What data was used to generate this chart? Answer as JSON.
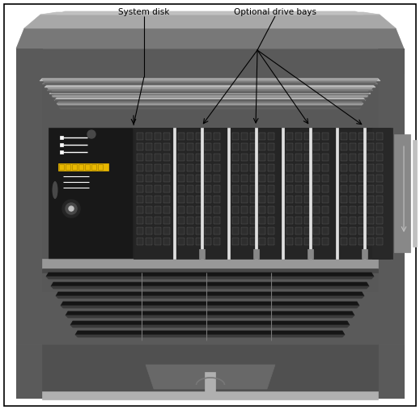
{
  "labels": {
    "system_disk": "System disk",
    "optional_bays": "Optional drive bays"
  },
  "colors": {
    "bg": "#ffffff",
    "black": "#000000",
    "chassis_outer": "#5a5a5a",
    "chassis_mid": "#787878",
    "chassis_light": "#a8a8a8",
    "chassis_lighter": "#c0c0c0",
    "chassis_inner_bg": "#686868",
    "recess_bg": "#585858",
    "drive_black": "#111111",
    "drive_dark": "#252525",
    "drive_texture": "#2e2e2e",
    "separator": "#e0e0e0",
    "yellow": "#e8b800",
    "white": "#ffffff",
    "light_gray": "#c8c8c8",
    "medium_gray": "#888888",
    "dark_gray": "#484848",
    "very_dark": "#181818",
    "right_panel_dark": "#282828",
    "shelf": "#989898",
    "vent_dark": "#151515",
    "vent_mid": "#3a3a3a",
    "lower_body": "#686868",
    "lower_dark": "#505050",
    "lower_strip": "#b0b0b0",
    "top_cap_light": "#909090",
    "top_cap_lighter": "#b0b0b0",
    "curved_line_light": "#9a9a9a",
    "curved_line_dark": "#606060"
  },
  "figure_width": 5.19,
  "figure_height": 5.07,
  "dpi": 100
}
